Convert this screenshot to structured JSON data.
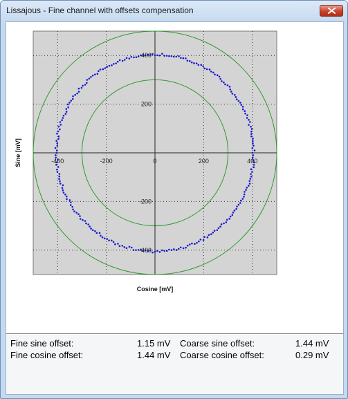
{
  "window": {
    "title": "Lissajous - Fine channel with offsets compensation"
  },
  "icons": {
    "close": "close-icon"
  },
  "colors": {
    "plot_background": "#d4d4d4",
    "reference_circles": "#2e9a2e",
    "data_points": "#1a1ad0",
    "grid": "#333333"
  },
  "chart_data": {
    "type": "scatter",
    "title": "",
    "xlabel": "Cosine [mV]",
    "ylabel": "Sine [mV]",
    "xlim": [
      -500,
      500
    ],
    "ylim": [
      -500,
      500
    ],
    "x_ticks": [
      -400,
      -200,
      0,
      200,
      400
    ],
    "y_ticks": [
      -400,
      -200,
      0,
      200,
      400
    ],
    "grid": true,
    "reference_circles_radius_mv": [
      300,
      500
    ],
    "data_series": {
      "shape": "circle",
      "center_mv": [
        0,
        0
      ],
      "radius_mv": 405,
      "points": 260
    }
  },
  "info": {
    "fine_sine_label": "Fine sine offset:",
    "fine_sine_value": "1.15 mV",
    "fine_cosine_label": "Fine cosine offset:",
    "fine_cosine_value": "1.44 mV",
    "coarse_sine_label": "Coarse sine offset:",
    "coarse_sine_value": "1.44 mV",
    "coarse_cosine_label": "Coarse cosine offset:",
    "coarse_cosine_value": "0.29 mV"
  }
}
